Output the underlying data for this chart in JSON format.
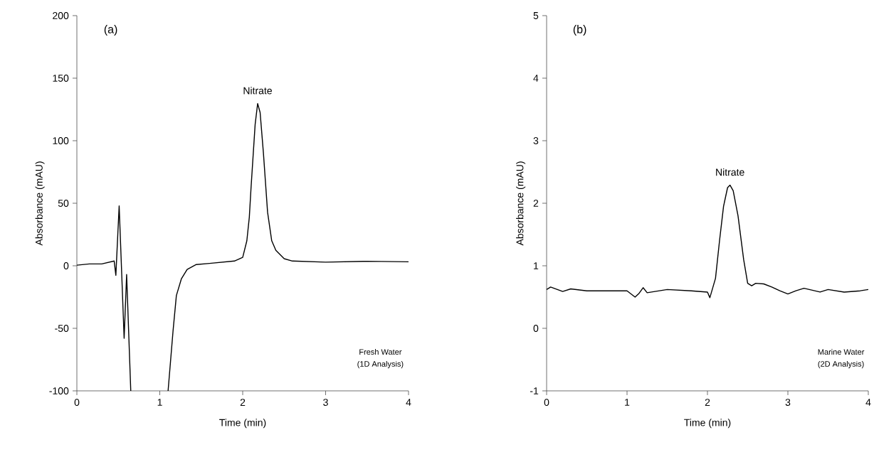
{
  "chart_data": [
    {
      "type": "line",
      "xlabel": "Time (min)",
      "ylabel": "Absorbance (mAU)",
      "annotations": [
        "(a)",
        {
          "text": "Nitrate",
          "x": 2.18,
          "y": 129.7
        },
        "Fresh Water",
        "(1D Analysis)"
      ],
      "xlim": [
        0,
        4
      ],
      "ylim": [
        -100,
        200
      ],
      "xticks": [
        0,
        1,
        2,
        3,
        4
      ],
      "yticks": [
        -100,
        -50,
        0,
        50,
        100,
        150,
        200
      ],
      "grid": false,
      "series": [
        {
          "color": "#000000",
          "x": [
            0,
            0.15,
            0.3,
            0.45,
            0.47,
            0.51,
            0.57,
            0.6,
            0.65,
            0.88,
            1.1,
            1.16,
            1.2,
            1.26,
            1.33,
            1.44,
            1.6,
            1.9,
            2.0,
            2.05,
            2.08,
            2.1,
            2.15,
            2.18,
            2.21,
            2.25,
            2.3,
            2.35,
            2.4,
            2.5,
            2.6,
            3.0,
            3.5,
            4.0
          ],
          "values": [
            0.5,
            1.5,
            1.5,
            3.8,
            -7.6,
            47.9,
            -58,
            -7,
            -100,
            null,
            -100,
            -52,
            -23.8,
            -10.5,
            -2.9,
            1,
            1.9,
            3.8,
            6.7,
            20,
            39,
            61.8,
            113,
            129.7,
            122.6,
            90,
            42.8,
            20,
            12.4,
            5.7,
            3.8,
            2.9,
            3.6,
            3.2
          ]
        }
      ]
    },
    {
      "type": "line",
      "xlabel": "Time (min)",
      "ylabel": "Absorbance (mAU)",
      "annotations": [
        "(b)",
        {
          "text": "Nitrate",
          "x": 2.28,
          "y": 2.29
        },
        "Marine Water",
        "(2D Analysis)"
      ],
      "xlim": [
        0,
        4
      ],
      "ylim": [
        -1,
        5
      ],
      "xticks": [
        0,
        1,
        2,
        3,
        4
      ],
      "yticks": [
        -1,
        0,
        1,
        2,
        3,
        4,
        5
      ],
      "grid": false,
      "series": [
        {
          "color": "#000000",
          "x": [
            0,
            0.05,
            0.2,
            0.3,
            0.5,
            0.8,
            1.0,
            1.1,
            1.15,
            1.2,
            1.25,
            1.5,
            1.8,
            2.0,
            2.03,
            2.1,
            2.15,
            2.2,
            2.25,
            2.28,
            2.32,
            2.38,
            2.45,
            2.5,
            2.55,
            2.6,
            2.7,
            2.8,
            2.9,
            3.0,
            3.1,
            3.2,
            3.4,
            3.5,
            3.7,
            3.9,
            4.0
          ],
          "values": [
            0.62,
            0.66,
            0.59,
            0.63,
            0.6,
            0.6,
            0.6,
            0.5,
            0.56,
            0.65,
            0.57,
            0.62,
            0.6,
            0.58,
            0.49,
            0.8,
            1.4,
            1.95,
            2.25,
            2.29,
            2.2,
            1.8,
            1.1,
            0.72,
            0.68,
            0.72,
            0.71,
            0.66,
            0.6,
            0.55,
            0.6,
            0.64,
            0.58,
            0.62,
            0.58,
            0.6,
            0.62
          ]
        }
      ]
    }
  ]
}
